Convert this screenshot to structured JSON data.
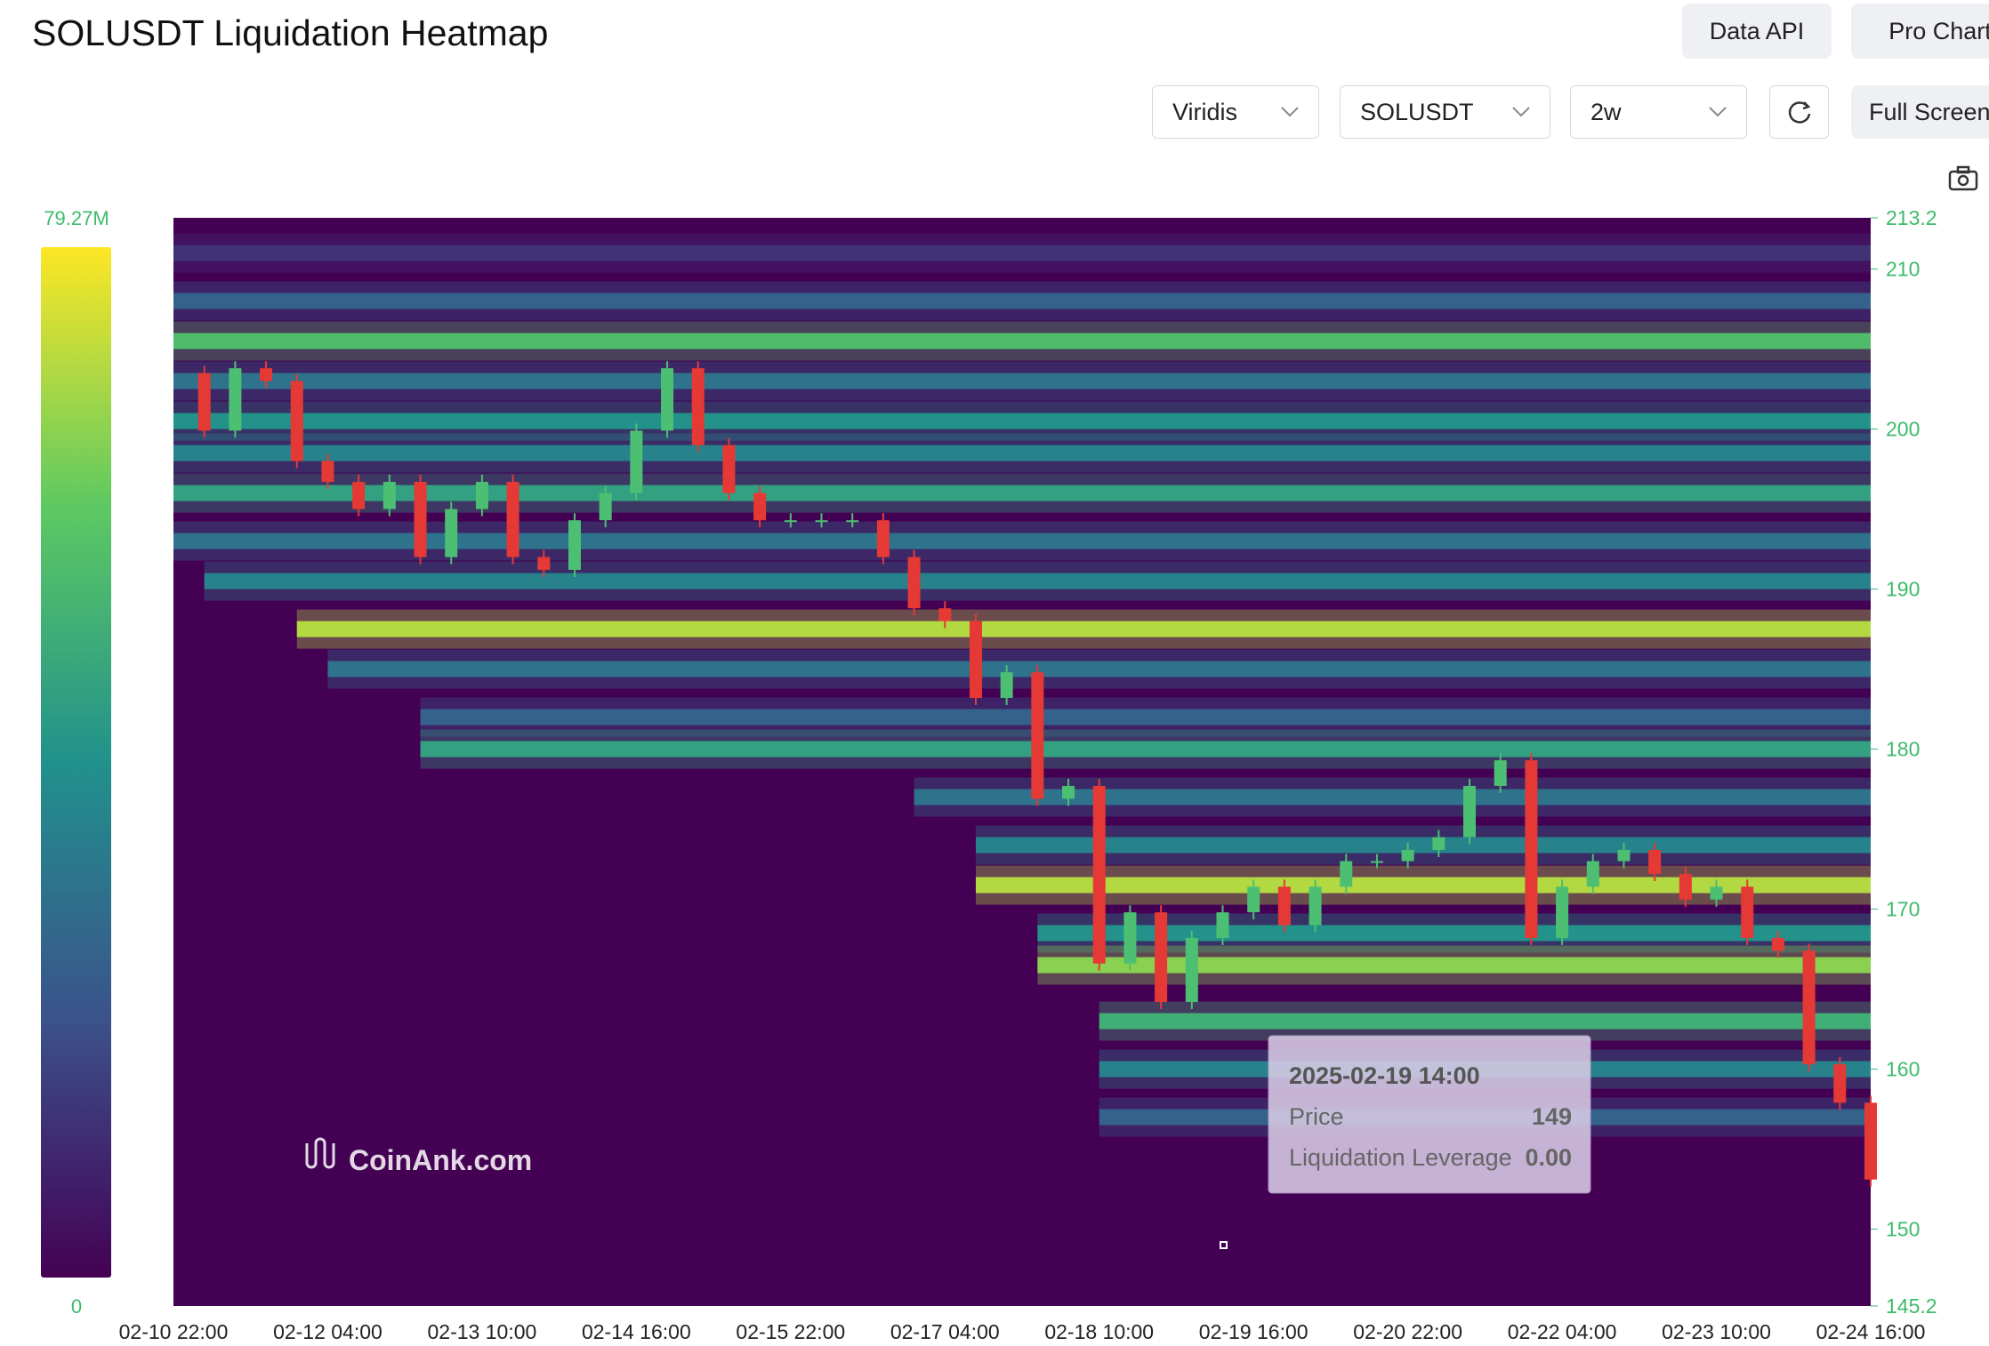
{
  "header": {
    "title": "SOLUSDT Liquidation Heatmap",
    "buttons": [
      "Data API",
      "Pro Chart"
    ]
  },
  "controls": {
    "colormap": "Viridis",
    "symbol": "SOLUSDT",
    "range": "2w",
    "fullscreen": "Full Screen"
  },
  "chart_data": {
    "type": "heatmap",
    "watermark": "CoinAnk.com",
    "x": [
      "02-10 22:00",
      "02-12 04:00",
      "02-13 10:00",
      "02-14 16:00",
      "02-15 22:00",
      "02-17 04:00",
      "02-18 10:00",
      "02-19 16:00",
      "02-20 22:00",
      "02-22 04:00",
      "02-23 10:00",
      "02-24 16:00"
    ],
    "ylim": [
      145.2,
      213.2
    ],
    "yticks": [
      145.2,
      150,
      160,
      170,
      180,
      190,
      200,
      210,
      213.2
    ],
    "colorscale": [
      "#440154",
      "#3b528b",
      "#21918c",
      "#5ec962",
      "#fde725"
    ],
    "colorbar": {
      "range": [
        0,
        79270000
      ],
      "ticks": [
        0,
        {
          "value": 79270000,
          "label": "79.27M"
        }
      ]
    },
    "price": [
      203.5,
      199.9,
      203.8,
      203,
      198,
      196.7,
      195,
      196.7,
      192,
      195,
      196.7,
      192,
      191.2,
      194.3,
      196,
      199.9,
      203.8,
      199,
      196,
      194.3,
      194.3,
      194.3,
      194.3,
      192,
      188.8,
      188,
      183.2,
      184.8,
      176.9,
      177.7,
      166.6,
      169.8,
      164.2,
      168.2,
      169.8,
      171.4,
      169,
      171.4,
      173,
      173,
      173.7,
      174.5,
      177.7,
      179.3,
      168.2,
      171.4,
      173,
      173.7,
      172.2,
      170.6,
      171.4,
      168.2,
      167.4,
      160.3,
      157.9,
      153.1
    ],
    "bands": {
      "prices": [
        211,
        208,
        205.5,
        203,
        200.5,
        198.5,
        196,
        193,
        190.5,
        187.5,
        185,
        182,
        180,
        177,
        174,
        171.5,
        168.5,
        166.5,
        163,
        160,
        157
      ],
      "values": [
        12000000,
        25000000,
        55000000,
        30000000,
        40000000,
        35000000,
        45000000,
        30000000,
        35000000,
        70000000,
        30000000,
        25000000,
        45000000,
        30000000,
        35000000,
        70000000,
        40000000,
        65000000,
        50000000,
        35000000,
        25000000
      ]
    },
    "tooltip": {
      "time": "2025-02-19 14:00",
      "rows": [
        [
          "Price",
          "149"
        ],
        [
          "Liquidation Leverage",
          "0.00"
        ]
      ]
    }
  }
}
